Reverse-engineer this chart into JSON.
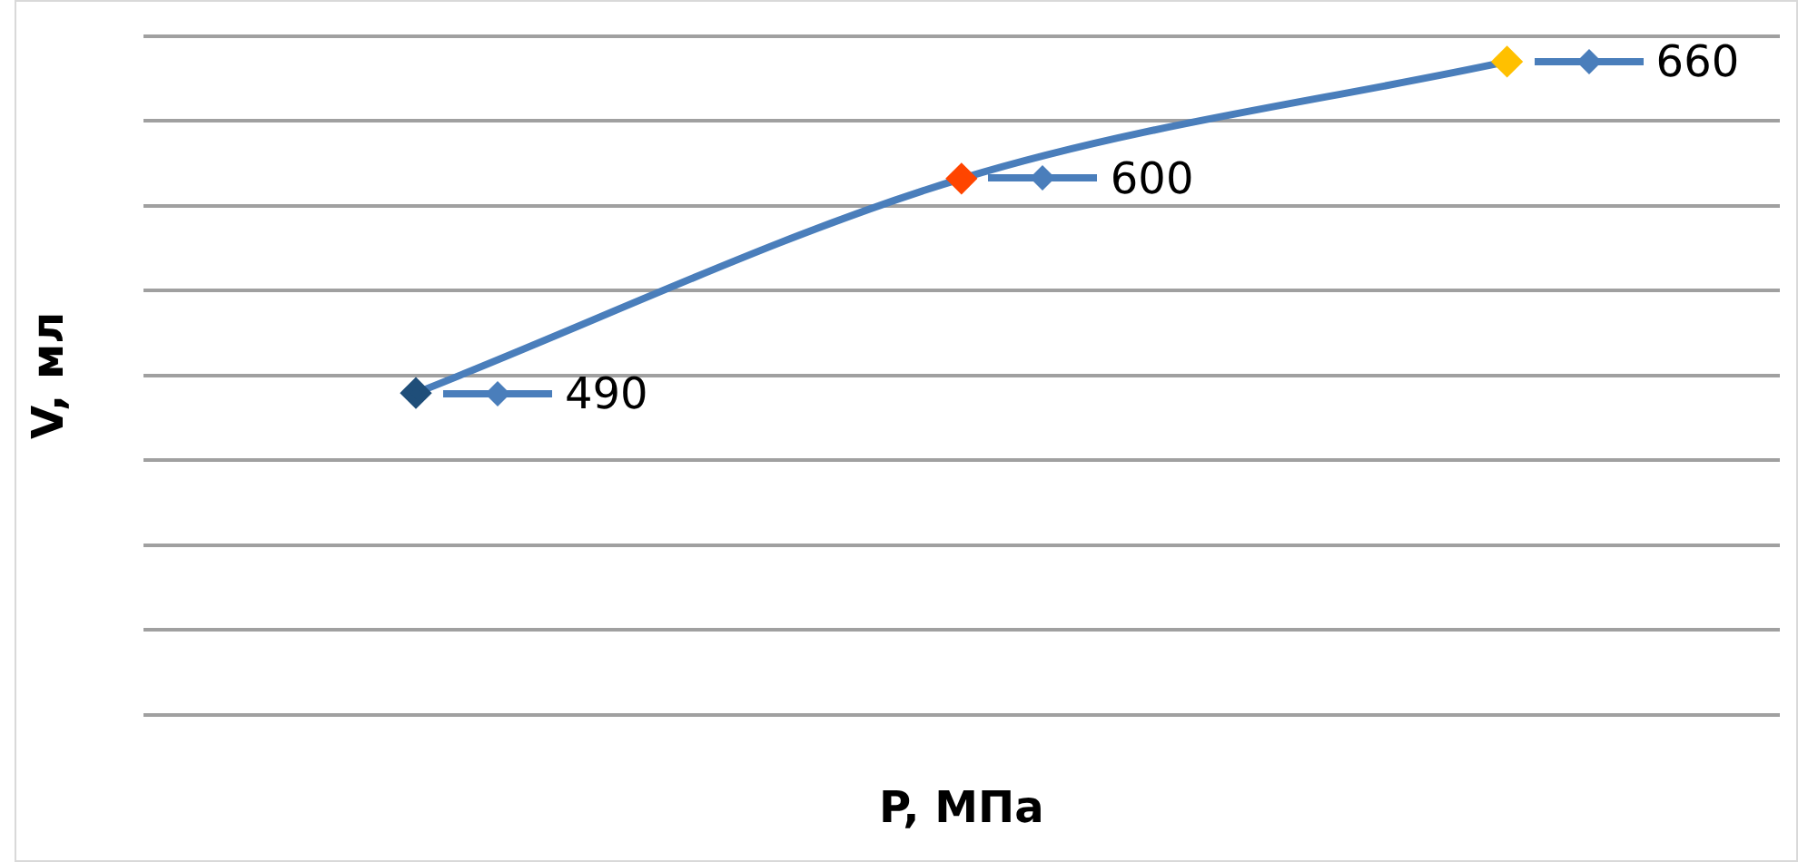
{
  "chart_data": {
    "type": "line",
    "xlabel": "P, МПа",
    "ylabel": "V, мл",
    "categories": [
      null,
      null,
      null
    ],
    "series": [
      {
        "color": "#4a7ebb",
        "colors": [
          "#1f4e79",
          "#ff4500",
          "#ffc000"
        ],
        "values": [
          490,
          600,
          660
        ]
      }
    ],
    "ylim": [
      325,
      673
    ],
    "yticks": [
      {
        "value": 325,
        "label": null
      },
      {
        "value": 368.5,
        "label": null
      },
      {
        "value": 412,
        "label": null
      },
      {
        "value": 455.5,
        "label": null
      },
      {
        "value": 499,
        "label": null
      },
      {
        "value": 542.5,
        "label": null
      },
      {
        "value": 586,
        "label": null
      },
      {
        "value": 629.5,
        "label": null
      },
      {
        "value": 673,
        "label": null
      }
    ],
    "grid": "y",
    "legend": false,
    "marker": "diamond",
    "line_style": "solid",
    "data_labels": true
  }
}
